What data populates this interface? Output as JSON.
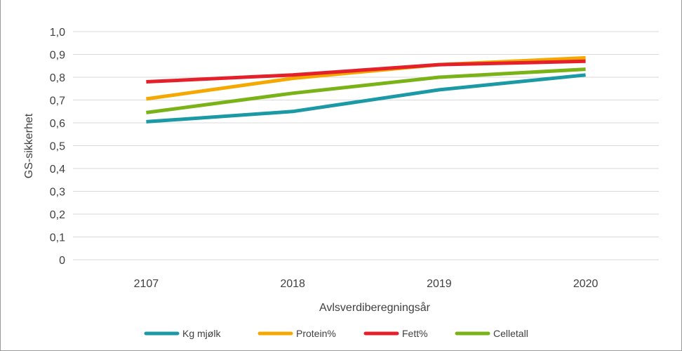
{
  "chart_data": {
    "type": "line",
    "title": "",
    "xlabel": "Avlsverdiberegningsår",
    "ylabel": "GS-sikkerhet",
    "categories": [
      "2107",
      "2018",
      "2019",
      "2020"
    ],
    "ylim": [
      0,
      1.0
    ],
    "yticks": [
      "0",
      "0,1",
      "0,2",
      "0,3",
      "0,4",
      "0,5",
      "0,6",
      "0,7",
      "0,8",
      "0,9",
      "1,0"
    ],
    "grid": true,
    "legend_position": "bottom",
    "series": [
      {
        "name": "Kg mjølk",
        "color": "#1b9aa6",
        "values": [
          0.605,
          0.65,
          0.745,
          0.81
        ]
      },
      {
        "name": "Protein%",
        "color": "#f5a800",
        "values": [
          0.705,
          0.795,
          0.855,
          0.885
        ]
      },
      {
        "name": "Fett%",
        "color": "#e4202a",
        "values": [
          0.78,
          0.81,
          0.855,
          0.87
        ]
      },
      {
        "name": "Celletall",
        "color": "#7ab317",
        "values": [
          0.645,
          0.73,
          0.8,
          0.835
        ]
      }
    ]
  }
}
